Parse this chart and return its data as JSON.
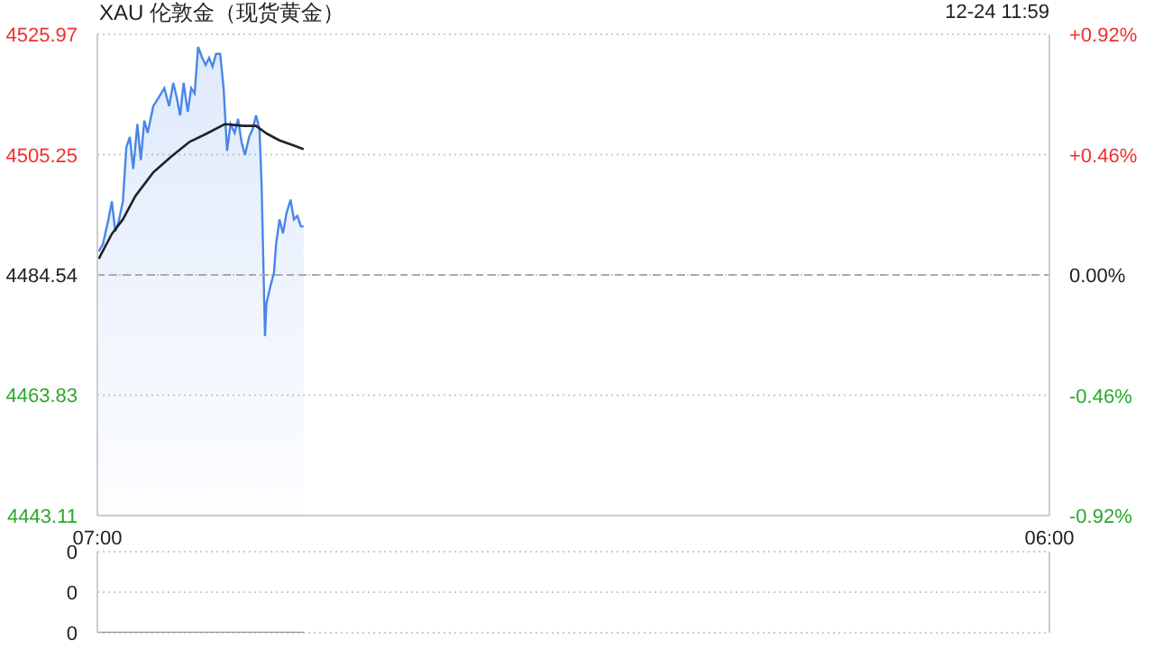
{
  "chart_data": [
    {
      "type": "area",
      "title": "XAU 伦敦金（现货黄金）",
      "annotations": [
        "12-24 11:59"
      ],
      "xlim": [
        "--12-24T07:00",
        "--12-25T06:00"
      ],
      "xticks": [
        {
          "value": "--12-24T07:00",
          "label": "07:00"
        },
        {
          "value": "--12-25T06:00",
          "label": "06:00"
        }
      ],
      "ylim": [
        4443.11,
        4525.97
      ],
      "yticks": [
        4443.11,
        4463.83,
        4484.54,
        4505.25,
        4525.97
      ],
      "y2lim": [
        -0.92,
        0.92
      ],
      "y2ticks": [
        {
          "value": -0.92,
          "label": "-0.92%"
        },
        {
          "value": -0.46,
          "label": "-0.46%"
        },
        {
          "value": 0,
          "label": "0.00%"
        },
        {
          "value": 0.46,
          "label": "+0.46%"
        },
        {
          "value": 0.92,
          "label": "+0.92%"
        }
      ],
      "grid": "y",
      "ref_lines": [
        {
          "axis": "y",
          "value": 4484.54,
          "color": "#aaaaaa",
          "line_style": "dashed"
        }
      ],
      "series": [
        {
          "color": "#4a86e8",
          "x": [
            "--12-24T07:02",
            "--12-24T07:08",
            "--12-24T07:16",
            "--12-24T07:21",
            "--12-24T07:26",
            "--12-24T07:31",
            "--12-24T07:37",
            "--12-24T07:42",
            "--12-24T07:47",
            "--12-24T07:52",
            "--12-24T07:58",
            "--12-24T08:03",
            "--12-24T08:08",
            "--12-24T08:13",
            "--12-24T08:21",
            "--12-24T08:29",
            "--12-24T08:37",
            "--12-24T08:44",
            "--12-24T08:50",
            "--12-24T08:55",
            "--12-24T09:00",
            "--12-24T09:05",
            "--12-24T09:11",
            "--12-24T09:16",
            "--12-24T09:21",
            "--12-24T09:26",
            "--12-24T09:32",
            "--12-24T09:37",
            "--12-24T09:42",
            "--12-24T09:47",
            "--12-24T09:52",
            "--12-24T09:58",
            "--12-24T10:03",
            "--12-24T10:08",
            "--12-24T10:13",
            "--12-24T10:19",
            "--12-24T10:24",
            "--12-24T10:29",
            "--12-24T10:34",
            "--12-24T10:40",
            "--12-24T10:45",
            "--12-24T10:50",
            "--12-24T10:55",
            "--12-24T10:58",
            "--12-24T11:03",
            "--12-24T11:05",
            "--12-24T11:11",
            "--12-24T11:16",
            "--12-24T11:19",
            "--12-24T11:24",
            "--12-24T11:29",
            "--12-24T11:34",
            "--12-24T11:40",
            "--12-24T11:45",
            "--12-24T11:50",
            "--12-24T11:55",
            "--12-24T11:59"
          ],
          "values": [
            4488.6,
            4489.8,
            4494.1,
            4497.2,
            4492.0,
            4493.8,
            4497.2,
            4506.5,
            4508.3,
            4502.8,
            4510.5,
            4504.3,
            4511.1,
            4509.0,
            4513.6,
            4515.1,
            4516.7,
            4513.6,
            4517.6,
            4515.1,
            4512.0,
            4517.6,
            4512.6,
            4516.7,
            4515.8,
            4523.8,
            4521.9,
            4520.7,
            4521.9,
            4520.4,
            4522.6,
            4522.6,
            4516.7,
            4505.9,
            4510.5,
            4509.0,
            4511.4,
            4507.4,
            4505.2,
            4508.3,
            4509.6,
            4512.0,
            4509.6,
            4500.3,
            4474.0,
            4479.6,
            4482.7,
            4484.9,
            4489.8,
            4494.1,
            4491.7,
            4495.1,
            4497.5,
            4494.1,
            4494.7,
            4492.9,
            4492.9
          ]
        },
        {
          "type": "line",
          "color": "#222222",
          "x": [
            "--12-24T07:02",
            "--12-24T07:21",
            "--12-24T07:37",
            "--12-24T07:55",
            "--12-24T08:21",
            "--12-24T08:47",
            "--12-24T09:13",
            "--12-24T09:39",
            "--12-24T10:05",
            "--12-24T10:32",
            "--12-24T10:50",
            "--12-24T11:05",
            "--12-24T11:24",
            "--12-24T11:45",
            "--12-24T11:59"
          ],
          "values": [
            4487.3,
            4491.6,
            4494.1,
            4498.1,
            4502.2,
            4504.9,
            4507.4,
            4508.9,
            4510.5,
            4510.2,
            4510.2,
            4508.9,
            4507.7,
            4506.8,
            4506.2
          ]
        }
      ]
    },
    {
      "type": "line",
      "xlim": [
        "--12-24T07:00",
        "--12-25T06:00"
      ],
      "ylim": [
        0,
        0.4
      ],
      "yticks": [
        {
          "value": 0,
          "label": "0"
        },
        {
          "value": 0.2,
          "label": "0"
        },
        {
          "value": 0.4,
          "label": "0"
        }
      ],
      "tick_labels": "y",
      "grid": "y",
      "series": [
        {
          "color": "#999999",
          "x": [
            "--12-24T07:02",
            "--12-24T11:59"
          ],
          "values": [
            0,
            0
          ]
        }
      ]
    }
  ]
}
